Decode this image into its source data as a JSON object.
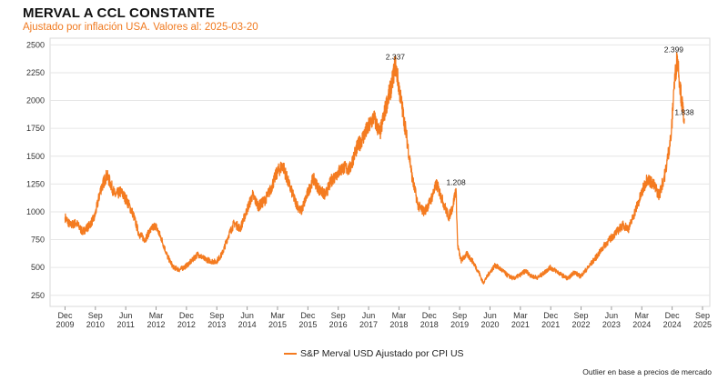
{
  "chart_data": {
    "type": "line",
    "title": "MERVAL A CCL CONSTANTE",
    "subtitle": "Ajustado por inflación USA. Valores al: 2025-03-20",
    "footnote": "Outlier en base a precios de mercado",
    "line_color": "#f47b20",
    "ylim": [
      150,
      2560
    ],
    "yticks": [
      250,
      500,
      750,
      1000,
      1250,
      1500,
      1750,
      2000,
      2250,
      2500
    ],
    "ytick_labels": [
      "250",
      "500",
      "750",
      "1000",
      "1250",
      "1500",
      "1750",
      "2000",
      "2250",
      "2500"
    ],
    "xlim": [
      2009.55,
      2025.85
    ],
    "xticks": [
      {
        "x": 2009.92,
        "line1": "Dec",
        "line2": "2009"
      },
      {
        "x": 2010.67,
        "line1": "Sep",
        "line2": "2010"
      },
      {
        "x": 2011.42,
        "line1": "Jun",
        "line2": "2011"
      },
      {
        "x": 2012.17,
        "line1": "Mar",
        "line2": "2012"
      },
      {
        "x": 2012.92,
        "line1": "Dec",
        "line2": "2012"
      },
      {
        "x": 2013.67,
        "line1": "Sep",
        "line2": "2013"
      },
      {
        "x": 2014.42,
        "line1": "Jun",
        "line2": "2014"
      },
      {
        "x": 2015.17,
        "line1": "Mar",
        "line2": "2015"
      },
      {
        "x": 2015.92,
        "line1": "Dec",
        "line2": "2015"
      },
      {
        "x": 2016.67,
        "line1": "Sep",
        "line2": "2016"
      },
      {
        "x": 2017.42,
        "line1": "Jun",
        "line2": "2017"
      },
      {
        "x": 2018.17,
        "line1": "Mar",
        "line2": "2018"
      },
      {
        "x": 2018.92,
        "line1": "Dec",
        "line2": "2018"
      },
      {
        "x": 2019.67,
        "line1": "Sep",
        "line2": "2019"
      },
      {
        "x": 2020.42,
        "line1": "Jun",
        "line2": "2020"
      },
      {
        "x": 2021.17,
        "line1": "Mar",
        "line2": "2021"
      },
      {
        "x": 2021.92,
        "line1": "Dec",
        "line2": "2021"
      },
      {
        "x": 2022.67,
        "line1": "Sep",
        "line2": "2022"
      },
      {
        "x": 2023.42,
        "line1": "Jun",
        "line2": "2023"
      },
      {
        "x": 2024.17,
        "line1": "Mar",
        "line2": "2024"
      },
      {
        "x": 2024.92,
        "line1": "Dec",
        "line2": "2024"
      },
      {
        "x": 2025.67,
        "line1": "Sep",
        "line2": "2025"
      }
    ],
    "annotations": [
      {
        "x": 2018.08,
        "y": 2337,
        "label": "2.337"
      },
      {
        "x": 2019.58,
        "y": 1208,
        "label": "1.208"
      },
      {
        "x": 2024.96,
        "y": 2399,
        "label": "2.399"
      },
      {
        "x": 2025.22,
        "y": 1838,
        "label": "1.838"
      }
    ],
    "series": [
      {
        "name": "S&P Merval USD Ajustado por CPI US",
        "x": [
          2009.92,
          2010.05,
          2010.2,
          2010.35,
          2010.5,
          2010.65,
          2010.8,
          2010.95,
          2011.05,
          2011.15,
          2011.3,
          2011.45,
          2011.6,
          2011.75,
          2011.9,
          2012.0,
          2012.15,
          2012.3,
          2012.45,
          2012.6,
          2012.75,
          2012.9,
          2013.05,
          2013.2,
          2013.35,
          2013.5,
          2013.65,
          2013.8,
          2013.95,
          2014.1,
          2014.25,
          2014.4,
          2014.55,
          2014.7,
          2014.85,
          2015.0,
          2015.15,
          2015.3,
          2015.45,
          2015.6,
          2015.75,
          2015.9,
          2016.05,
          2016.2,
          2016.35,
          2016.5,
          2016.65,
          2016.8,
          2016.95,
          2017.1,
          2017.25,
          2017.4,
          2017.55,
          2017.7,
          2017.85,
          2018.0,
          2018.08,
          2018.2,
          2018.35,
          2018.5,
          2018.65,
          2018.8,
          2018.95,
          2019.1,
          2019.25,
          2019.4,
          2019.5,
          2019.58,
          2019.62,
          2019.7,
          2019.85,
          2020.0,
          2020.15,
          2020.25,
          2020.4,
          2020.55,
          2020.7,
          2020.85,
          2021.0,
          2021.15,
          2021.3,
          2021.45,
          2021.6,
          2021.75,
          2021.9,
          2022.05,
          2022.2,
          2022.35,
          2022.5,
          2022.65,
          2022.8,
          2022.95,
          2023.1,
          2023.25,
          2023.4,
          2023.55,
          2023.7,
          2023.85,
          2024.0,
          2024.15,
          2024.3,
          2024.45,
          2024.6,
          2024.75,
          2024.9,
          2024.96,
          2025.05,
          2025.15,
          2025.22
        ],
        "values": [
          950,
          880,
          900,
          820,
          870,
          950,
          1200,
          1330,
          1250,
          1150,
          1180,
          1100,
          980,
          800,
          750,
          820,
          880,
          760,
          600,
          500,
          480,
          510,
          560,
          620,
          580,
          560,
          550,
          620,
          780,
          900,
          850,
          1000,
          1150,
          1050,
          1100,
          1200,
          1350,
          1420,
          1250,
          1100,
          1000,
          1150,
          1300,
          1200,
          1150,
          1280,
          1350,
          1400,
          1380,
          1550,
          1650,
          1750,
          1850,
          1700,
          1950,
          2150,
          2337,
          2050,
          1700,
          1300,
          1050,
          1000,
          1100,
          1250,
          1100,
          950,
          1050,
          1208,
          700,
          560,
          620,
          550,
          450,
          360,
          450,
          520,
          480,
          430,
          400,
          430,
          470,
          420,
          410,
          450,
          500,
          470,
          430,
          400,
          460,
          420,
          480,
          550,
          620,
          700,
          760,
          820,
          880,
          850,
          1000,
          1150,
          1300,
          1250,
          1150,
          1350,
          1700,
          2100,
          2399,
          2000,
          1838
        ]
      }
    ]
  }
}
